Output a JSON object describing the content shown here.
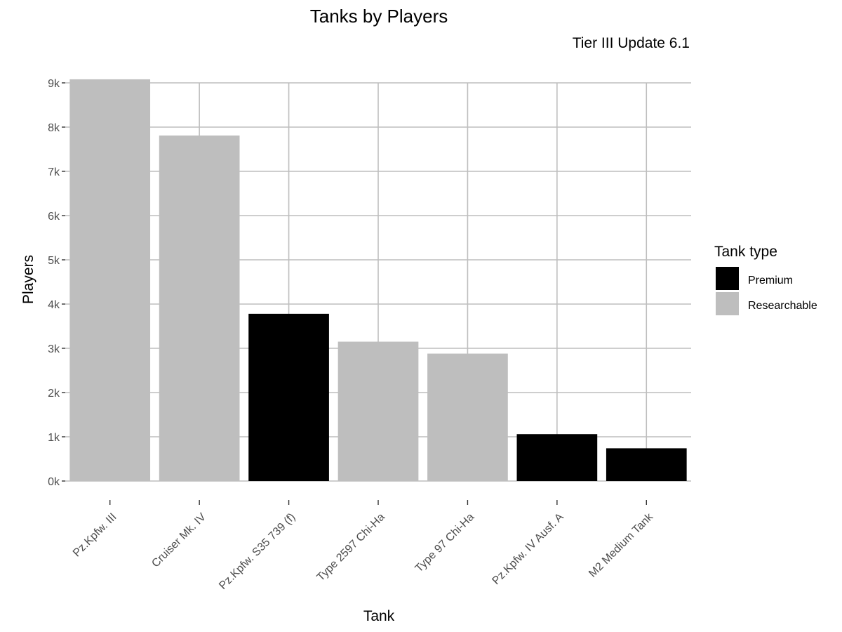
{
  "chart_data": {
    "type": "bar",
    "title": "Tanks by Players",
    "subtitle": "Tier III Update 6.1",
    "xlabel": "Tank",
    "ylabel": "Players",
    "categories": [
      "Pz.Kpfw. III",
      "Cruiser Mk. IV",
      "Pz.Kpfw. S35 739 (f)",
      "Type 2597 Chi-Ha",
      "Type 97 Chi-Ha",
      "Pz.Kpfw. IV Ausf. A",
      "M2 Medium Tank"
    ],
    "values": [
      9080,
      7810,
      3780,
      3150,
      2880,
      1060,
      740
    ],
    "types": [
      "Researchable",
      "Researchable",
      "Premium",
      "Researchable",
      "Researchable",
      "Premium",
      "Premium"
    ],
    "ylim": [
      0,
      9000
    ],
    "yticks": [
      0,
      1000,
      2000,
      3000,
      4000,
      5000,
      6000,
      7000,
      8000,
      9000
    ],
    "ytick_labels": [
      "0k",
      "1k",
      "2k",
      "3k",
      "4k",
      "5k",
      "6k",
      "7k",
      "8k",
      "9k"
    ],
    "grid": true,
    "legend": {
      "title": "Tank type",
      "position": "right",
      "entries": [
        {
          "name": "Premium",
          "color": "#000000"
        },
        {
          "name": "Researchable",
          "color": "#bebebe"
        }
      ]
    }
  }
}
